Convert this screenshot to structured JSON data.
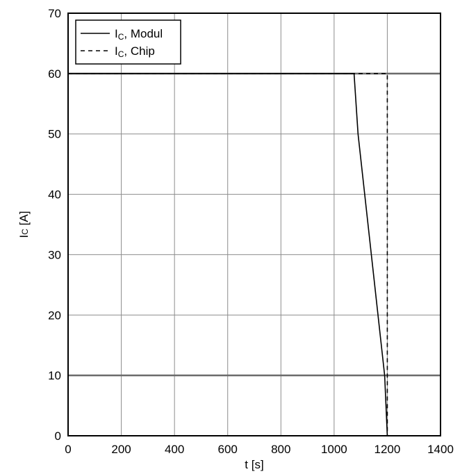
{
  "chart_data": {
    "type": "line",
    "xlabel": "t [s]",
    "ylabel": "IC [A]",
    "ylabel_main": "I",
    "ylabel_sub": "C",
    "ylabel_unit": " [A]",
    "xlim": [
      0,
      1400
    ],
    "ylim": [
      0,
      70
    ],
    "x_ticks": [
      0,
      200,
      400,
      600,
      800,
      1000,
      1200,
      1400
    ],
    "y_ticks": [
      0,
      10,
      20,
      30,
      40,
      50,
      60,
      70
    ],
    "grid": true,
    "highlight_gridlines_y": [
      10,
      60
    ],
    "legend_position": "top-left",
    "series": [
      {
        "name": "IC, Modul",
        "name_main": "I",
        "name_sub": "C",
        "name_suffix": ", Modul",
        "style": "solid",
        "color": "#000000",
        "x": [
          0,
          1075,
          1090,
          1190,
          1200
        ],
        "y": [
          60,
          60,
          50,
          10,
          0
        ]
      },
      {
        "name": "IC, Chip",
        "name_main": "I",
        "name_sub": "C",
        "name_suffix": ", Chip",
        "style": "dashed",
        "color": "#000000",
        "x": [
          0,
          1197,
          1200,
          1200
        ],
        "y": [
          60,
          60,
          60,
          0
        ]
      }
    ]
  }
}
